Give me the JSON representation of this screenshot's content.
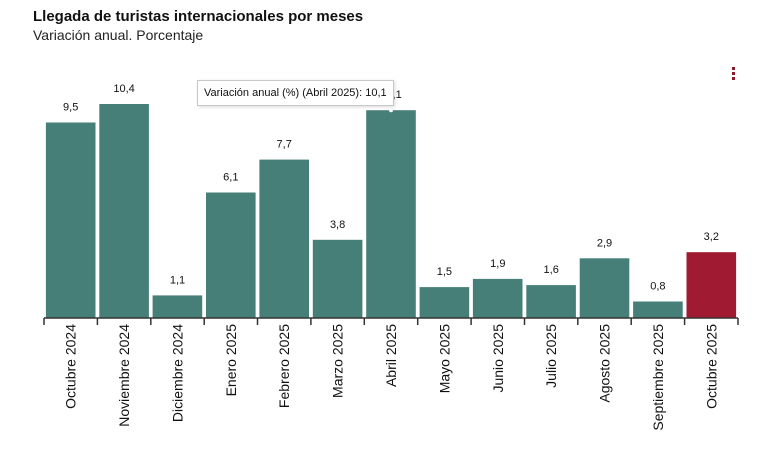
{
  "header": {
    "title": "Llegada de turistas internacionales por meses",
    "subtitle": "Variación anual. Porcentaje"
  },
  "menu_icon": "more-vertical-icon",
  "tooltip": {
    "text": "Variación anual (%) (Abril 2025): 10,1"
  },
  "colors": {
    "bar": "#467f78",
    "highlight": "#a01a31",
    "axis": "#333333",
    "menu": "#8b1a2c"
  },
  "chart_data": {
    "type": "bar",
    "title": "Llegada de turistas internacionales por meses",
    "subtitle": "Variación anual. Porcentaje",
    "categories": [
      "Octubre 2024",
      "Noviembre 2024",
      "Diciembre 2024",
      "Enero 2025",
      "Febrero 2025",
      "Marzo 2025",
      "Abril 2025",
      "Mayo 2025",
      "Junio 2025",
      "Julio 2025",
      "Agosto 2025",
      "Septiembre 2025",
      "Octubre 2025"
    ],
    "values": [
      9.5,
      10.4,
      1.1,
      6.1,
      7.7,
      3.8,
      10.1,
      1.5,
      1.9,
      1.6,
      2.9,
      0.8,
      3.2
    ],
    "value_labels": [
      "9,5",
      "10,4",
      "1,1",
      "6,1",
      "7,7",
      "3,8",
      "10,1",
      "1,5",
      "1,9",
      "1,6",
      "2,9",
      "0,8",
      "3,2"
    ],
    "highlight_index": 12,
    "ylim": [
      0,
      10.4
    ],
    "xlabel": "",
    "ylabel": "",
    "grid": false,
    "legend": "none"
  }
}
